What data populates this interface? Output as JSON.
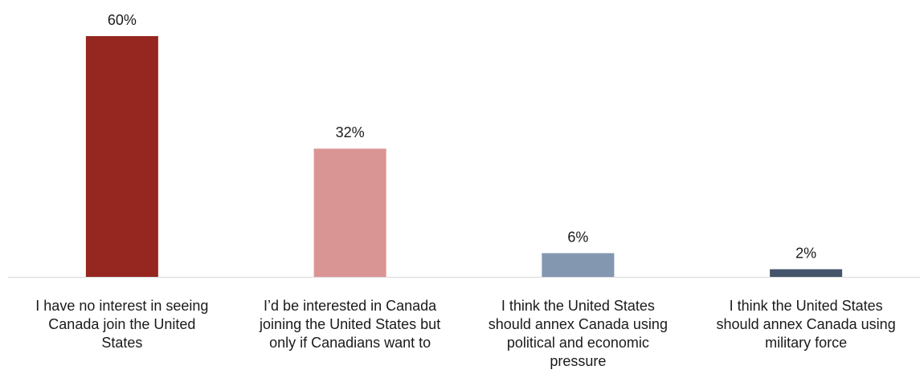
{
  "chart_data": {
    "type": "bar",
    "title": "",
    "xlabel": "",
    "ylabel": "",
    "ylim": [
      0,
      60
    ],
    "grid": false,
    "legend": "none",
    "categories": [
      "I have no interest in seeing Canada join the United States",
      "I’d be interested in Canada joining the United States but only if Canadians want to",
      "I think the United States should annex Canada using political and economic pressure",
      "I think the United States should annex Canada using military force"
    ],
    "category_lines": [
      [
        "I have no interest in seeing",
        "Canada join the United",
        "States"
      ],
      [
        "I’d be interested in Canada",
        "joining the United States but",
        "only if Canadians want to"
      ],
      [
        "I think the United States",
        "should annex Canada using",
        "political and economic",
        "pressure"
      ],
      [
        "I think the United States",
        "should annex Canada using",
        "military force"
      ]
    ],
    "values": [
      60,
      32,
      6,
      2
    ],
    "data_labels": [
      "60%",
      "32%",
      "6%",
      "2%"
    ],
    "colors": [
      "#952720",
      "#d99594",
      "#8497b0",
      "#44546a"
    ]
  }
}
